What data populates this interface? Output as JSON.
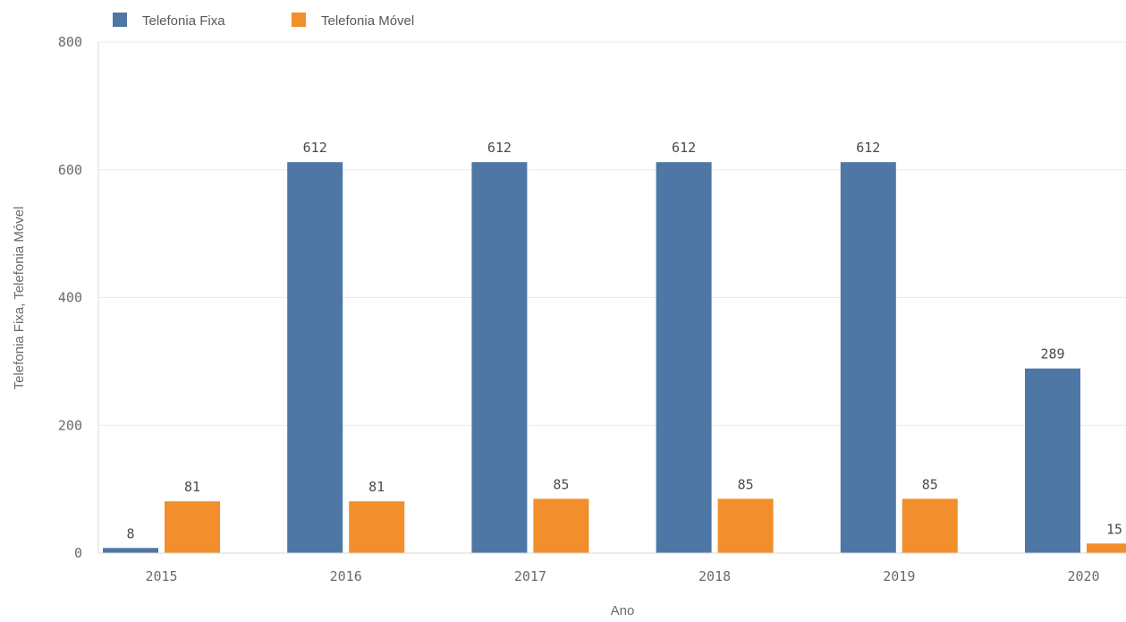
{
  "chart_data": {
    "type": "bar",
    "categories": [
      "2015",
      "2016",
      "2017",
      "2018",
      "2019",
      "2020"
    ],
    "series": [
      {
        "name": "Telefonia Fixa",
        "values": [
          8,
          612,
          612,
          612,
          612,
          289
        ],
        "color": "#4e77a5"
      },
      {
        "name": "Telefonia Móvel",
        "values": [
          81,
          81,
          85,
          85,
          85,
          15
        ],
        "color": "#f28e2b"
      }
    ],
    "data_labels": {
      "Telefonia Fixa": [
        "8",
        "612",
        "612",
        "612",
        "612",
        "289"
      ],
      "Telefonia Móvel": [
        "81",
        "81",
        "85",
        "85",
        "85",
        "15"
      ]
    },
    "title": "",
    "xlabel": "Ano",
    "ylabel": "Telefonia Fixa, Telefonia Móvel",
    "ylim": [
      0,
      800
    ],
    "yticks": [
      "0",
      "200",
      "400",
      "600",
      "800"
    ],
    "grid": true,
    "legend": "top-left"
  }
}
